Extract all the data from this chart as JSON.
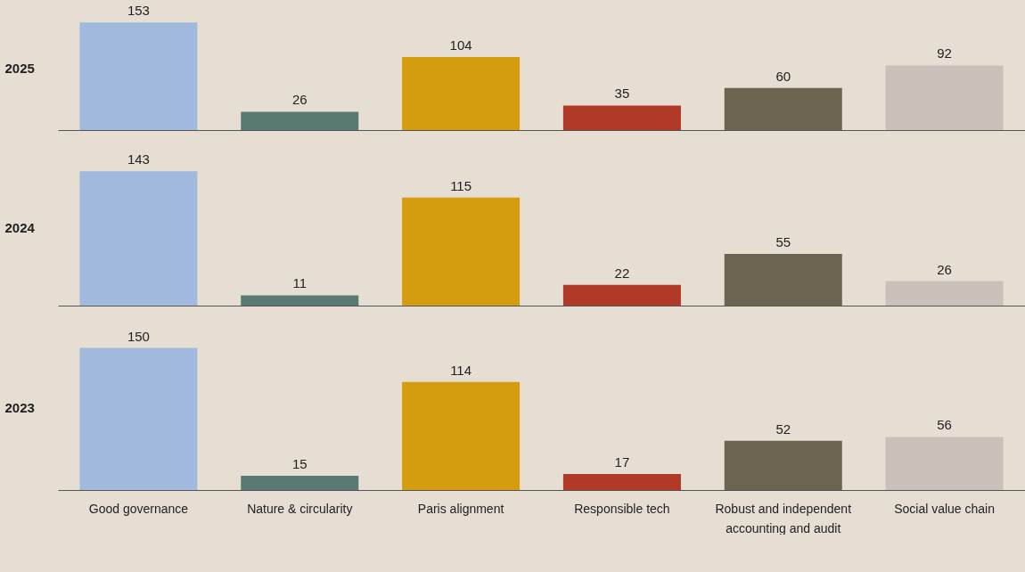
{
  "chart_data": [
    {
      "type": "bar",
      "ylabel": "2025",
      "categories": [
        null,
        null,
        null,
        null,
        null,
        null
      ],
      "values": [
        153,
        26,
        104,
        35,
        60,
        92
      ],
      "colors": [
        "#a0b9dc",
        "#587a73",
        "#d49c0f",
        "#b03a27",
        "#6b6450",
        "#c9c0ba"
      ],
      "data_labels": true,
      "tick_labels": false
    },
    {
      "type": "bar",
      "ylabel": "2024",
      "categories": [
        null,
        null,
        null,
        null,
        null,
        null
      ],
      "values": [
        143,
        11,
        115,
        22,
        55,
        26
      ],
      "colors": [
        "#a0b9dc",
        "#587a73",
        "#d49c0f",
        "#b03a27",
        "#6b6450",
        "#c9c0ba"
      ],
      "data_labels": true,
      "tick_labels": false
    },
    {
      "type": "bar",
      "ylabel": "2023",
      "categories": [
        "Good governance",
        "Nature & circularity",
        "Paris alignment",
        "Responsible tech",
        "Robust and independent accounting and audit",
        "Social value chain"
      ],
      "values": [
        150,
        15,
        114,
        17,
        52,
        56
      ],
      "colors": [
        "#a0b9dc",
        "#587a73",
        "#d49c0f",
        "#b03a27",
        "#6b6450",
        "#c9c0ba"
      ],
      "data_labels": true,
      "tick_labels": "x"
    }
  ]
}
